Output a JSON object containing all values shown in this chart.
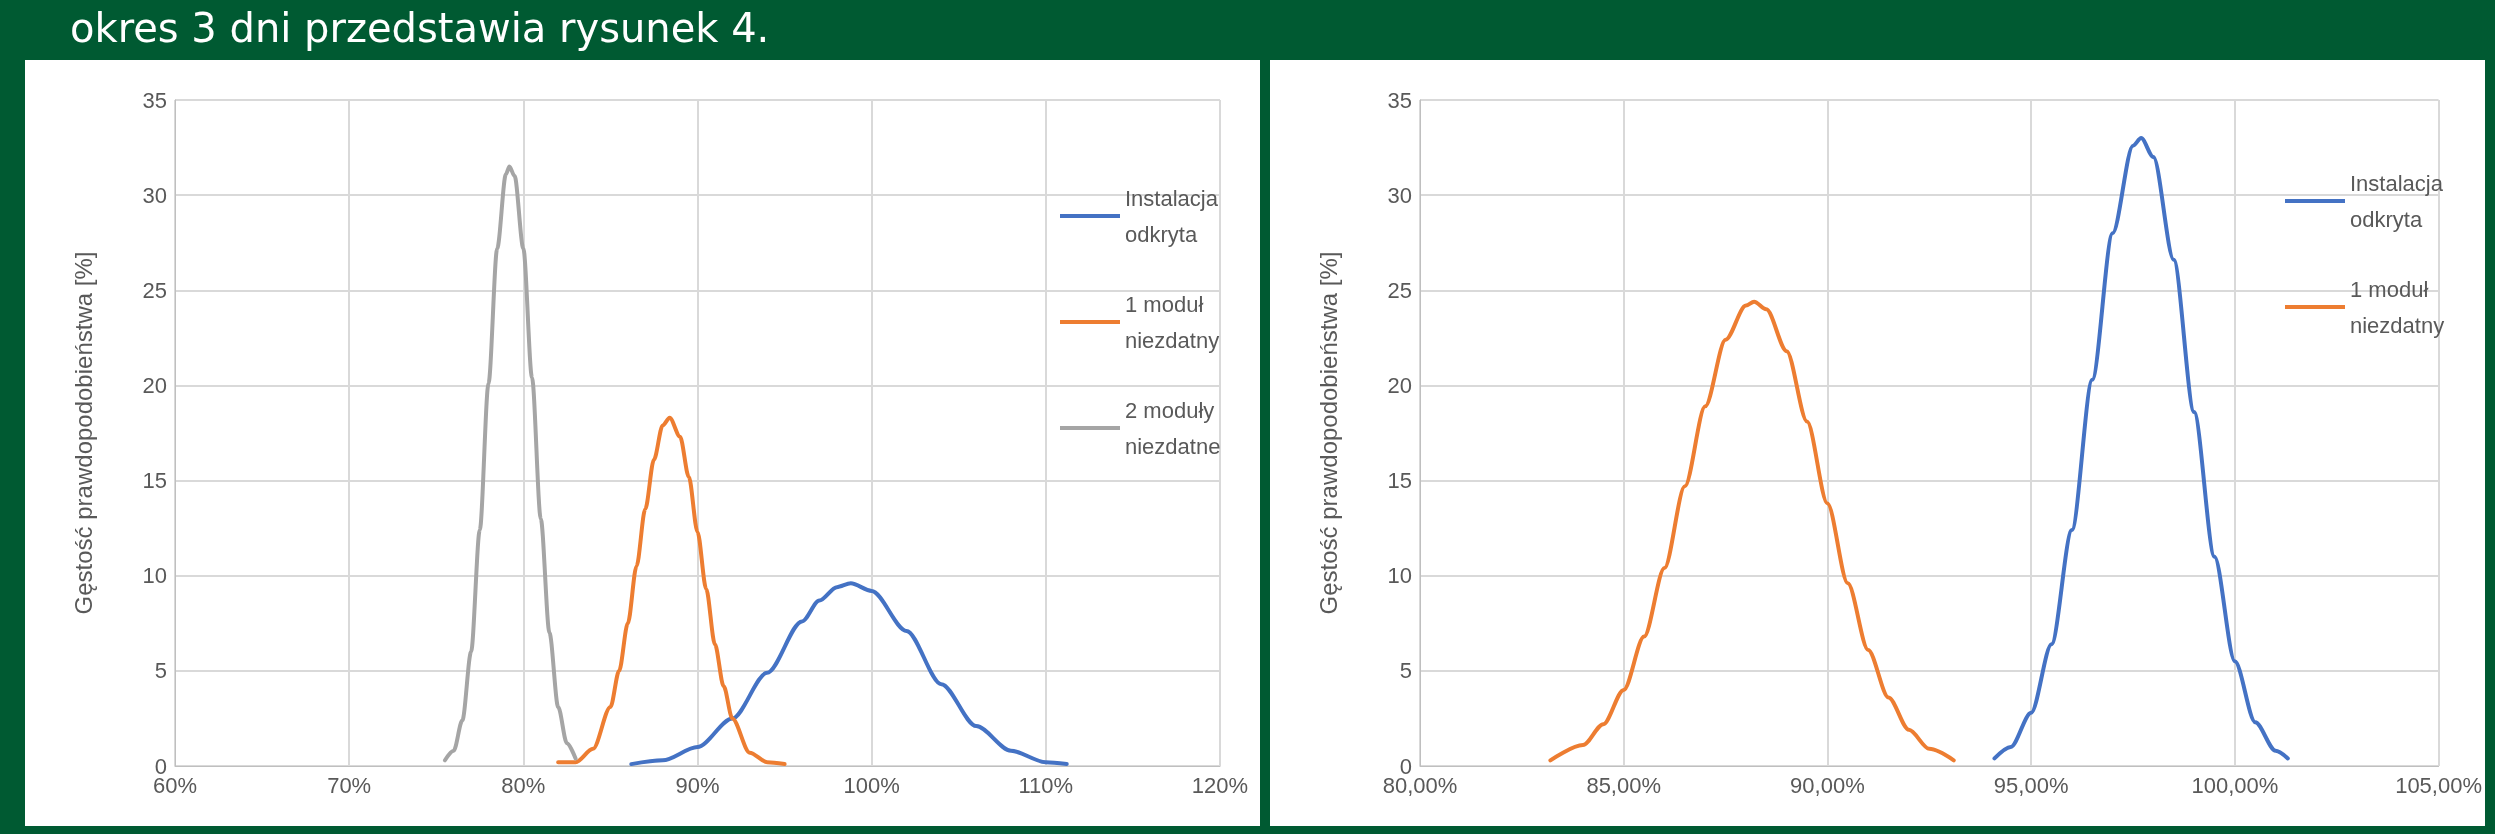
{
  "chart_data": [
    {
      "type": "line",
      "annotations": [
        "okres 3 dni przedstawia rysunek 4."
      ],
      "ylabel": "Gęstość prawdopodobieństwa [%]",
      "xlim": [
        60,
        120
      ],
      "xticks": [
        {
          "value": 60,
          "label": "60%"
        },
        {
          "value": 70,
          "label": "70%"
        },
        {
          "value": 80,
          "label": "80%"
        },
        {
          "value": 90,
          "label": "90%"
        },
        {
          "value": 100,
          "label": "100%"
        },
        {
          "value": 110,
          "label": "110%"
        },
        {
          "value": 120,
          "label": "120%"
        }
      ],
      "ylim": [
        0,
        35
      ],
      "yticks": [
        0,
        5,
        10,
        15,
        20,
        25,
        30,
        35
      ],
      "grid": true,
      "legend": "right",
      "marker": "none",
      "line_style": "solid",
      "series": [
        {
          "name": "Instalacja odkryta",
          "color": "#4472c4",
          "x": [
            86.2,
            88,
            90,
            92,
            94,
            96,
            97,
            98,
            98.8,
            100,
            102,
            104,
            106,
            108,
            110,
            111.2
          ],
          "values": [
            0.1,
            0.3,
            1.0,
            2.5,
            4.9,
            7.6,
            8.7,
            9.4,
            9.6,
            9.2,
            7.1,
            4.3,
            2.1,
            0.8,
            0.2,
            0.1
          ]
        },
        {
          "name": "1 moduł niezdatny",
          "color": "#ed7d31",
          "x": [
            82,
            83,
            84,
            85,
            85.5,
            86,
            86.5,
            87,
            87.5,
            88,
            88.4,
            89,
            89.5,
            90,
            90.5,
            91,
            91.5,
            92,
            93,
            94,
            95
          ],
          "values": [
            0.2,
            0.2,
            0.9,
            3.1,
            5.0,
            7.5,
            10.5,
            13.5,
            16.1,
            17.9,
            18.3,
            17.3,
            15.2,
            12.3,
            9.3,
            6.4,
            4.2,
            2.5,
            0.7,
            0.2,
            0.1
          ]
        },
        {
          "name": "2 moduły niezdatne",
          "color": "#a5a5a5",
          "x": [
            75.5,
            76,
            76.5,
            77,
            77.5,
            78,
            78.5,
            79,
            79.2,
            79.5,
            80,
            80.5,
            81,
            81.5,
            82,
            82.5,
            83
          ],
          "values": [
            0.3,
            0.8,
            2.4,
            6.0,
            12.4,
            20.1,
            27.2,
            31.1,
            31.5,
            31.0,
            27.2,
            20.4,
            13.0,
            7.0,
            3.1,
            1.2,
            0.4
          ]
        }
      ]
    },
    {
      "type": "line",
      "ylabel": "Gęstość prawdopodobieństwa [%]",
      "xlim": [
        80,
        105
      ],
      "xticks": [
        {
          "value": 80,
          "label": "80,00%"
        },
        {
          "value": 85,
          "label": "85,00%"
        },
        {
          "value": 90,
          "label": "90,00%"
        },
        {
          "value": 95,
          "label": "95,00%"
        },
        {
          "value": 100,
          "label": "100,00%"
        },
        {
          "value": 105,
          "label": "105,00%"
        }
      ],
      "ylim": [
        0,
        35
      ],
      "yticks": [
        0,
        5,
        10,
        15,
        20,
        25,
        30,
        35
      ],
      "grid": true,
      "legend": "right",
      "marker": "none",
      "line_style": "solid",
      "series": [
        {
          "name": "Instalacja odkryta",
          "color": "#4472c4",
          "x": [
            94.1,
            94.5,
            95,
            95.5,
            96,
            96.5,
            97,
            97.5,
            97.7,
            98,
            98.5,
            99,
            99.5,
            100,
            100.5,
            101,
            101.3
          ],
          "values": [
            0.4,
            1.0,
            2.8,
            6.4,
            12.4,
            20.3,
            28.0,
            32.6,
            33.0,
            32.0,
            26.6,
            18.6,
            11.0,
            5.5,
            2.3,
            0.8,
            0.4
          ]
        },
        {
          "name": "1 moduł niezdatny",
          "color": "#ed7d31",
          "x": [
            83.2,
            84,
            84.5,
            85,
            85.5,
            86,
            86.5,
            87,
            87.5,
            88,
            88.2,
            88.5,
            89,
            89.5,
            90,
            90.5,
            91,
            91.5,
            92,
            92.5,
            93.1
          ],
          "values": [
            0.3,
            1.1,
            2.2,
            4.0,
            6.8,
            10.4,
            14.7,
            18.9,
            22.4,
            24.2,
            24.4,
            24.0,
            21.8,
            18.1,
            13.8,
            9.6,
            6.1,
            3.6,
            1.9,
            0.9,
            0.3
          ]
        }
      ]
    }
  ]
}
